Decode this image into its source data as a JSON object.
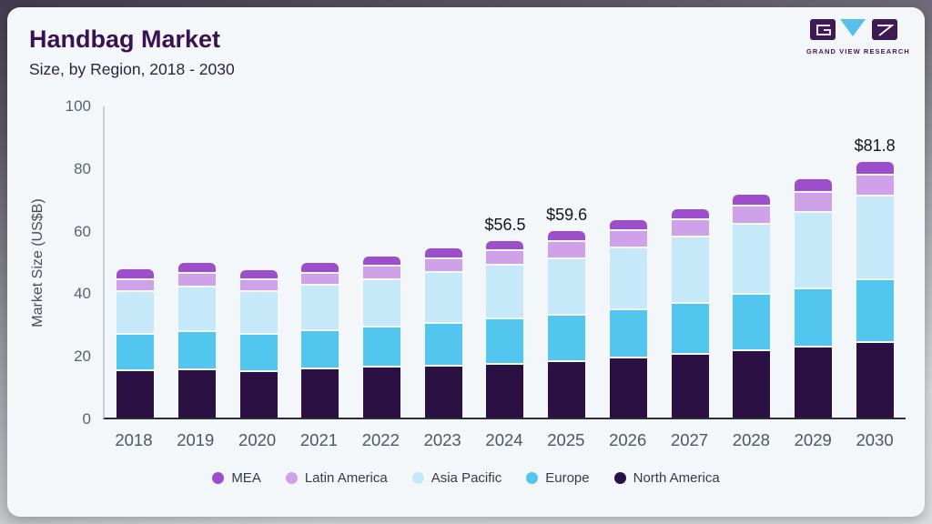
{
  "header": {
    "title": "Handbag Market",
    "subtitle": "Size, by Region, 2018 - 2030",
    "logo_text": "GRAND VIEW RESEARCH"
  },
  "colors": {
    "title": "#3a1252",
    "card_bg": "#f4f7fa",
    "axis_baseline": "#2d2d37",
    "axis_line": "#c9cfd4",
    "logo_purple": "#3e1a52",
    "logo_blue": "#56c1e8"
  },
  "chart_data": {
    "type": "bar",
    "stacked": true,
    "title": "Handbag Market Size, by Region, 2018 - 2030",
    "xlabel": "",
    "ylabel": "Market Size (US$B)",
    "ylim": [
      0,
      100
    ],
    "yticks": [
      0,
      20,
      40,
      60,
      80,
      100
    ],
    "grid": false,
    "legend_position": "bottom",
    "categories": [
      "2018",
      "2019",
      "2020",
      "2021",
      "2022",
      "2023",
      "2024",
      "2025",
      "2026",
      "2027",
      "2028",
      "2029",
      "2030"
    ],
    "series": [
      {
        "name": "North America",
        "color": "#2b1143",
        "values": [
          15.5,
          15.8,
          15.0,
          15.9,
          16.5,
          17.0,
          17.5,
          18.3,
          19.4,
          20.6,
          21.9,
          23.0,
          24.4
        ]
      },
      {
        "name": "Europe",
        "color": "#53c6f0",
        "values": [
          11.5,
          12.2,
          11.9,
          12.2,
          12.8,
          13.6,
          14.4,
          14.9,
          15.5,
          16.3,
          17.8,
          18.7,
          20.1
        ]
      },
      {
        "name": "Asia Pacific",
        "color": "#c6e9f9",
        "values": [
          13.6,
          14.3,
          13.7,
          14.5,
          15.2,
          16.3,
          17.3,
          18.1,
          19.8,
          21.2,
          22.4,
          24.3,
          26.7
        ]
      },
      {
        "name": "Latin America",
        "color": "#cfa1e9",
        "values": [
          4.0,
          4.3,
          3.9,
          4.0,
          4.3,
          4.4,
          4.6,
          5.4,
          5.5,
          5.6,
          5.9,
          6.3,
          6.6
        ]
      },
      {
        "name": "MEA",
        "color": "#9c4ecb",
        "values": [
          2.7,
          2.8,
          2.6,
          2.7,
          2.7,
          2.8,
          2.7,
          2.9,
          2.9,
          3.0,
          3.3,
          3.8,
          4.0
        ]
      }
    ],
    "totals": [
      47.3,
      49.4,
      47.1,
      49.3,
      51.5,
      54.1,
      56.5,
      59.6,
      63.1,
      66.7,
      71.3,
      76.1,
      81.8
    ],
    "annotations": [
      {
        "category": "2024",
        "label": "$56.5"
      },
      {
        "category": "2025",
        "label": "$59.6"
      },
      {
        "category": "2030",
        "label": "$81.8"
      }
    ],
    "legend": [
      "MEA",
      "Latin America",
      "Asia Pacific",
      "Europe",
      "North America"
    ]
  }
}
